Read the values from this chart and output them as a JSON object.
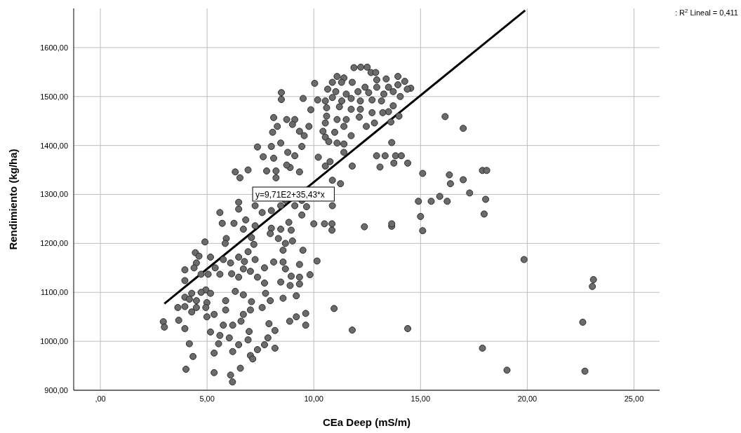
{
  "chart_data": {
    "type": "scatter",
    "xlabel": "CEa Deep (mS/m)",
    "ylabel": "Rendimiento (kg/ha)",
    "xlim": [
      -1.25,
      26.2
    ],
    "ylim": [
      900,
      1680
    ],
    "xticks": [
      {
        "value": 0,
        "label": ",00"
      },
      {
        "value": 5,
        "label": "5,00"
      },
      {
        "value": 10,
        "label": "10,00"
      },
      {
        "value": 15,
        "label": "15,00"
      },
      {
        "value": 20,
        "label": "20,00"
      },
      {
        "value": 25,
        "label": "25,00"
      }
    ],
    "yticks": [
      {
        "value": 900,
        "label": "900,00"
      },
      {
        "value": 1000,
        "label": "1000,00"
      },
      {
        "value": 1100,
        "label": "1100,00"
      },
      {
        "value": 1200,
        "label": "1200,00"
      },
      {
        "value": 1300,
        "label": "1300,00"
      },
      {
        "value": 1400,
        "label": "1400,00"
      },
      {
        "value": 1500,
        "label": "1500,00"
      },
      {
        "value": 1600,
        "label": "1600,00"
      }
    ],
    "grid": true,
    "marker": "circle",
    "legend": false,
    "annotations": [
      "y=9,71E2+35,43*x",
      ": R$^{2}$ Lineal = 0,411"
    ],
    "series": [
      {
        "color": "#6b6b6b",
        "x": [
          16.15,
          17.0,
          15.1,
          16.35,
          17.0,
          16.4,
          17.9,
          18.1,
          17.3,
          15.9,
          14.9,
          15.5,
          16.25,
          18.05,
          15.0,
          17.98,
          15.1,
          12.37,
          13.65,
          12.94,
          13.34,
          13.83,
          14.1,
          13.1,
          13.75,
          14.4,
          13.65,
          19.85,
          23.1,
          23.05,
          22.6,
          10.95,
          11.8,
          14.4,
          10.15,
          17.9,
          19.05,
          22.7,
          13.65,
          10.0,
          10.5,
          10.85,
          10.85,
          11.88,
          12.2,
          12.5,
          12.68,
          12.9,
          11.09,
          11.41,
          12.95,
          13.39,
          13.94,
          14.26,
          14.54,
          14.38,
          13.94,
          13.5,
          12.95,
          12.4,
          11.8,
          11.3,
          10.87,
          10.65,
          11.03,
          11.52,
          12.07,
          12.57,
          13.28,
          13.72,
          14.05,
          10.04,
          10.18,
          10.54,
          10.87,
          11.31,
          11.75,
          12.18,
          12.73,
          13.17,
          13.72,
          13.5,
          13.23,
          12.73,
          12.18,
          11.75,
          11.2,
          10.6,
          10.6,
          11.09,
          11.52,
          12.13,
          12.46,
          12.84,
          13.61,
          13.99,
          10.54,
          9.77,
          9.86,
          9.5,
          8.48,
          8.48,
          8.12,
          8.73,
          9.11,
          8.29,
          9.0,
          8.07,
          9.33,
          9.55,
          10.43,
          10.54,
          10.98,
          11.41,
          11.75,
          11.41,
          11.09,
          10.7,
          7.36,
          8.01,
          8.45,
          8.78,
          9.44,
          9.11,
          7.63,
          8.12,
          7.79,
          6.92,
          6.32,
          6.54,
          8.23,
          8.89,
          9.33,
          8.73,
          10.21,
          10.54,
          10.76,
          11.41,
          11.8,
          10.87,
          11.25,
          10.87,
          8.23,
          8.67,
          9.44,
          6.48,
          6.48,
          7.25,
          7.58,
          8.01,
          8.45,
          9.11,
          9.66,
          9.44,
          5.6,
          5.71,
          6.26,
          6.81,
          6.7,
          7.25,
          8.01,
          8.45,
          8.83,
          8.94,
          4.9,
          5.9,
          5.85,
          7.08,
          7.19,
          8.34,
          8.67,
          9.0,
          8.56,
          9.49,
          7.96,
          6.92,
          4.45,
          4.62,
          5.16,
          4.5,
          3.96,
          4.39,
          4.72,
          3.96,
          5.05,
          5.38,
          5.6,
          5.76,
          6.1,
          6.48,
          6.75,
          7.25,
          6.7,
          7.03,
          6.15,
          6.48,
          7.69,
          8.12,
          8.56,
          8.67,
          9.33,
          9.82,
          7.36,
          7.69,
          8.45,
          8.94,
          9.33,
          8.89,
          9.33,
          3.96,
          4.28,
          4.17,
          4.5,
          4.94,
          5.16,
          4.72,
          4.99,
          3.63,
          3.96,
          4.28,
          4.5,
          4.94,
          5.33,
          4.99,
          5.87,
          6.32,
          6.7,
          7.08,
          7.74,
          7.96,
          7.58,
          7.03,
          6.7,
          6.59,
          5.87,
          8.56,
          9.18,
          9.62,
          9.18,
          8.87,
          9.62,
          7.9,
          8.18,
          6.97,
          6.2,
          5.76,
          5.16,
          2.95,
          3.0,
          3.67,
          3.96,
          5.6,
          6.04,
          6.48,
          6.92,
          7.85,
          7.69,
          8.18,
          7.36,
          7.03,
          7.14,
          6.2,
          5.54,
          5.33,
          4.17,
          4.34,
          4.01,
          5.33,
          6.1,
          6.19,
          6.56
        ],
        "values": [
          1459,
          1435,
          1343,
          1340,
          1330,
          1322,
          1349,
          1349,
          1303,
          1296,
          1286,
          1286,
          1286,
          1290,
          1255,
          1260,
          1226,
          1234,
          1235,
          1379,
          1379,
          1379,
          1379,
          1356,
          1364,
          1364,
          1406,
          1167,
          1126,
          1112,
          1039,
          1067,
          1023,
          1026,
          1164,
          986,
          941,
          939,
          1240,
          1240,
          1240,
          1240,
          1227,
          1559,
          1560,
          1560,
          1549,
          1549,
          1541,
          1538,
          1534,
          1536,
          1541,
          1531,
          1517,
          1515,
          1524,
          1519,
          1519,
          1519,
          1529,
          1529,
          1529,
          1515,
          1510,
          1505,
          1510,
          1508,
          1505,
          1510,
          1500,
          1527,
          1493,
          1491,
          1498,
          1491,
          1496,
          1491,
          1493,
          1491,
          1481,
          1469,
          1467,
          1467,
          1474,
          1474,
          1479,
          1477,
          1460,
          1453,
          1453,
          1458,
          1439,
          1446,
          1448,
          1460,
          1446,
          1439,
          1473,
          1496,
          1508,
          1494,
          1457,
          1453,
          1453,
          1439,
          1443,
          1427,
          1429,
          1420,
          1429,
          1417,
          1427,
          1439,
          1420,
          1403,
          1405,
          1408,
          1397,
          1398,
          1405,
          1386,
          1398,
          1379,
          1377,
          1374,
          1348,
          1350,
          1346,
          1334,
          1348,
          1355,
          1346,
          1360,
          1376,
          1358,
          1367,
          1386,
          1358,
          1329,
          1322,
          1277,
          1334,
          1288,
          1288,
          1284,
          1270,
          1277,
          1263,
          1267,
          1277,
          1277,
          1275,
          1258,
          1263,
          1241,
          1241,
          1248,
          1229,
          1236,
          1231,
          1229,
          1243,
          1227,
          1203,
          1210,
          1200,
          1212,
          1198,
          1210,
          1200,
          1205,
          1186,
          1186,
          1220,
          1183,
          1181,
          1174,
          1172,
          1160,
          1146,
          1150,
          1137,
          1124,
          1137,
          1150,
          1137,
          1167,
          1160,
          1172,
          1163,
          1167,
          1148,
          1143,
          1138,
          1131,
          1150,
          1162,
          1162,
          1148,
          1157,
          1136,
          1131,
          1119,
          1121,
          1133,
          1131,
          1114,
          1117,
          1090,
          1098,
          1086,
          1083,
          1105,
          1098,
          1100,
          1079,
          1069,
          1071,
          1060,
          1069,
          1069,
          1055,
          1050,
          1083,
          1102,
          1095,
          1081,
          1098,
          1083,
          1069,
          1064,
          1055,
          1041,
          1064,
          1088,
          1093,
          1057,
          1050,
          1041,
          1033,
          1036,
          1022,
          1020,
          1033,
          1033,
          1019,
          1040,
          1029,
          1043,
          1026,
          1012,
          1007,
          993,
          1003,
          1007,
          993,
          986,
          983,
          971,
          964,
          979,
          995,
          976,
          995,
          969,
          943,
          936,
          931,
          917,
          945
        ]
      },
      {
        "type": "line",
        "marker": "none",
        "color": "#000000",
        "x": [
          3.0,
          19.9
        ],
        "values": [
          1077,
          1676
        ]
      }
    ]
  }
}
